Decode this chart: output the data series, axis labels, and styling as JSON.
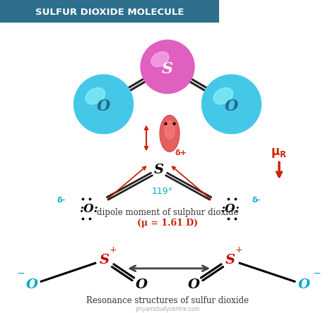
{
  "title": "SULFUR DIOXIDE MOLECULE",
  "title_bg": "#2d6e8c",
  "title_color": "white",
  "bg_color": "white",
  "S_color": "#e060c0",
  "O_color": "#45c8e8",
  "red_color": "#cc2200",
  "dark_red": "#aa1100",
  "cyan_color": "#00aacc",
  "resonance_S_color": "#cc0000",
  "black": "#111111",
  "dipole_label": "dipole moment of sulphur dioxide",
  "dipole_mu": "(μ = 1.61 D)",
  "resonance_label": "Resonance structures of sulfur dioxide",
  "website": "priyamstudycentre.com",
  "angle_label": "119°"
}
